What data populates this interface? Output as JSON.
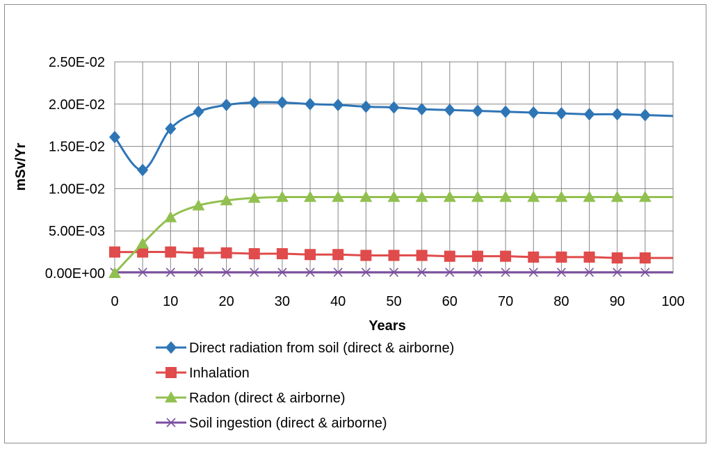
{
  "chart_data": {
    "type": "line",
    "title": "",
    "xlabel": "Years",
    "ylabel": "mSv/Yr",
    "xlim": [
      0,
      100
    ],
    "ylim": [
      0,
      0.025
    ],
    "x_ticks": [
      "0",
      "10",
      "20",
      "30",
      "40",
      "50",
      "60",
      "70",
      "80",
      "90",
      "100"
    ],
    "x_tick_values": [
      0,
      10,
      20,
      30,
      40,
      50,
      60,
      70,
      80,
      90,
      100
    ],
    "y_ticks": [
      "0.00E+00",
      "5.00E-03",
      "1.00E-02",
      "1.50E-02",
      "2.00E-02",
      "2.50E-02"
    ],
    "y_tick_values": [
      0,
      0.005,
      0.01,
      0.015,
      0.02,
      0.025
    ],
    "grid": true,
    "legend_position": "bottom",
    "x": [
      0,
      5,
      10,
      15,
      20,
      25,
      30,
      35,
      40,
      45,
      50,
      55,
      60,
      65,
      70,
      75,
      80,
      85,
      90,
      95,
      100
    ],
    "series": [
      {
        "name": "Direct radiation from soil (direct & airborne)",
        "color": "#2e75b6",
        "marker": "diamond",
        "values": [
          0.0161,
          0.0122,
          0.0171,
          0.0191,
          0.0199,
          0.0202,
          0.0202,
          0.02,
          0.0199,
          0.0197,
          0.0196,
          0.0194,
          0.0193,
          0.0192,
          0.0191,
          0.019,
          0.0189,
          0.0188,
          0.0188,
          0.0187,
          0.0186
        ]
      },
      {
        "name": "Inhalation",
        "color": "#e04b4b",
        "marker": "square",
        "values": [
          0.0025,
          0.0025,
          0.0025,
          0.0024,
          0.0024,
          0.0023,
          0.0023,
          0.0022,
          0.0022,
          0.0021,
          0.0021,
          0.0021,
          0.002,
          0.002,
          0.002,
          0.0019,
          0.0019,
          0.0019,
          0.0018,
          0.0018,
          0.0018
        ]
      },
      {
        "name": "Radon (direct & airborne)",
        "color": "#92c050",
        "marker": "triangle",
        "values": [
          0.0,
          0.0035,
          0.0066,
          0.008,
          0.0086,
          0.0089,
          0.009,
          0.009,
          0.009,
          0.009,
          0.009,
          0.009,
          0.009,
          0.009,
          0.009,
          0.009,
          0.009,
          0.009,
          0.009,
          0.009,
          0.009
        ]
      },
      {
        "name": "Soil ingestion (direct & airborne)",
        "color": "#7b4fa0",
        "marker": "x",
        "values": [
          0.0001,
          0.0001,
          0.0001,
          0.0001,
          0.0001,
          0.0001,
          0.0001,
          0.0001,
          0.0001,
          0.0001,
          0.0001,
          0.0001,
          0.0001,
          0.0001,
          0.0001,
          0.0001,
          0.0001,
          0.0001,
          0.0001,
          0.0001,
          0.0001
        ]
      }
    ]
  }
}
